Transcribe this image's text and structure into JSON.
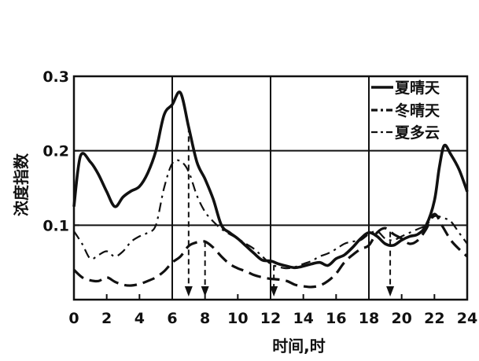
{
  "chart_data": {
    "type": "line",
    "xlabel": "时间,时",
    "ylabel": "浓度指数",
    "xlim": [
      0,
      24
    ],
    "ylim": [
      0,
      0.3
    ],
    "x_ticks": [
      "0",
      "2",
      "4",
      "6",
      "8",
      "10",
      "12",
      "14",
      "16",
      "18",
      "20",
      "22",
      "24"
    ],
    "y_ticks": [
      "0.1",
      "0.2",
      "0.3"
    ],
    "grid": true,
    "legend_position": "top-right",
    "series": [
      {
        "name": "夏晴天",
        "style": "solid",
        "x": [
          0,
          0.4,
          1,
          1.5,
          2,
          2.5,
          3,
          3.5,
          4,
          4.5,
          5,
          5.5,
          6,
          6.5,
          7,
          7.5,
          8,
          8.5,
          9,
          9.5,
          10,
          10.5,
          11,
          11.5,
          12,
          12.5,
          13,
          13.5,
          14,
          14.5,
          15,
          15.5,
          16,
          16.5,
          17,
          17.5,
          18,
          18.5,
          19,
          19.5,
          20,
          20.5,
          21,
          21.5,
          22,
          22.3,
          22.6,
          23,
          23.5,
          24
        ],
        "values": [
          0.125,
          0.193,
          0.185,
          0.168,
          0.145,
          0.125,
          0.138,
          0.146,
          0.152,
          0.17,
          0.2,
          0.248,
          0.262,
          0.278,
          0.232,
          0.185,
          0.162,
          0.135,
          0.1,
          0.09,
          0.082,
          0.072,
          0.062,
          0.053,
          0.052,
          0.048,
          0.045,
          0.043,
          0.045,
          0.048,
          0.05,
          0.046,
          0.055,
          0.06,
          0.07,
          0.082,
          0.09,
          0.085,
          0.075,
          0.073,
          0.08,
          0.085,
          0.088,
          0.1,
          0.133,
          0.178,
          0.207,
          0.195,
          0.175,
          0.145
        ]
      },
      {
        "name": "冬晴天",
        "style": "dashed",
        "x": [
          0,
          0.5,
          1,
          1.5,
          2,
          2.5,
          3,
          3.5,
          4,
          4.5,
          5,
          5.5,
          6,
          6.5,
          7,
          7.5,
          8,
          8.5,
          9,
          9.5,
          10,
          10.5,
          11,
          11.5,
          12,
          12.5,
          13,
          13.5,
          14,
          14.5,
          15,
          15.5,
          16,
          16.5,
          17,
          17.5,
          18,
          18.5,
          19,
          19.5,
          20,
          20.5,
          21,
          21.5,
          22,
          22.5,
          23,
          23.5,
          24
        ],
        "values": [
          0.04,
          0.03,
          0.026,
          0.025,
          0.03,
          0.024,
          0.02,
          0.019,
          0.021,
          0.025,
          0.03,
          0.038,
          0.05,
          0.058,
          0.072,
          0.077,
          0.078,
          0.07,
          0.058,
          0.048,
          0.042,
          0.038,
          0.033,
          0.03,
          0.028,
          0.027,
          0.025,
          0.02,
          0.018,
          0.017,
          0.019,
          0.025,
          0.035,
          0.05,
          0.06,
          0.068,
          0.073,
          0.09,
          0.096,
          0.088,
          0.082,
          0.075,
          0.08,
          0.095,
          0.115,
          0.098,
          0.08,
          0.068,
          0.058
        ]
      },
      {
        "name": "夏多云",
        "style": "dashdot",
        "x": [
          0,
          0.5,
          1,
          1.5,
          2,
          2.5,
          3,
          3.5,
          4,
          4.5,
          5,
          5.5,
          6,
          6.5,
          7,
          7.5,
          8,
          8.5,
          9,
          9.5,
          10,
          10.5,
          11,
          11.5,
          12,
          12.5,
          13,
          13.5,
          14,
          14.5,
          15,
          15.5,
          16,
          16.5,
          17,
          17.5,
          18,
          18.5,
          19,
          19.5,
          20,
          20.5,
          21,
          21.5,
          22,
          22.5,
          23,
          23.5,
          24
        ],
        "values": [
          0.092,
          0.075,
          0.055,
          0.06,
          0.065,
          0.058,
          0.065,
          0.078,
          0.085,
          0.09,
          0.1,
          0.15,
          0.183,
          0.186,
          0.172,
          0.14,
          0.118,
          0.105,
          0.095,
          0.088,
          0.082,
          0.075,
          0.068,
          0.058,
          0.048,
          0.044,
          0.042,
          0.044,
          0.048,
          0.052,
          0.058,
          0.062,
          0.068,
          0.075,
          0.078,
          0.08,
          0.088,
          0.092,
          0.082,
          0.08,
          0.085,
          0.09,
          0.095,
          0.1,
          0.112,
          0.11,
          0.105,
          0.09,
          0.075
        ]
      }
    ],
    "arrows": [
      {
        "series": "夏晴天",
        "x": 7.0
      },
      {
        "series": "冬晴天",
        "x": 8.0
      },
      {
        "series": "夏多云",
        "x": 12.2
      },
      {
        "series": "冬晴天",
        "x": 19.3
      }
    ]
  },
  "colors": {
    "ink": "#111111"
  }
}
